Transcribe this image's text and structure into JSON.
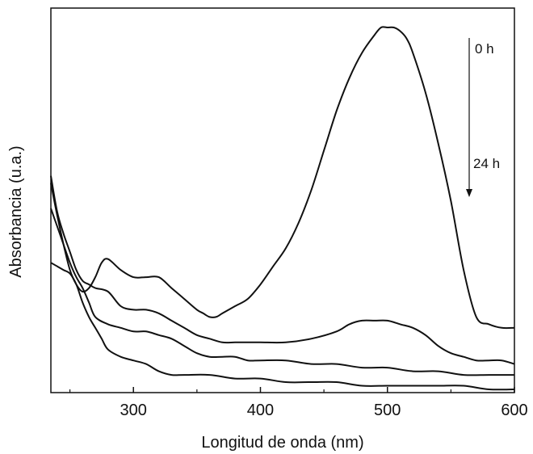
{
  "chart_data": {
    "type": "line",
    "title": "",
    "xlabel": "Longitud de onda (nm)",
    "ylabel": "Absorbancia (u.a.)",
    "xlim": [
      235,
      600
    ],
    "ylim": [
      0,
      1
    ],
    "x_ticks": [
      300,
      400,
      500,
      600
    ],
    "y_ticks_shown": false,
    "grid": false,
    "line_color": "#111111",
    "annotations": {
      "start_label": "0 h",
      "end_label": "24 h",
      "arrow": "down"
    },
    "series": [
      {
        "x": [
          235,
          240,
          245,
          250,
          255,
          260,
          265,
          270,
          275,
          280,
          290,
          300,
          310,
          320,
          330,
          340,
          350,
          355,
          360,
          365,
          370,
          380,
          390,
          400,
          410,
          420,
          430,
          440,
          450,
          460,
          470,
          480,
          490,
          495,
          500,
          505,
          510,
          515,
          520,
          530,
          540,
          550,
          560,
          570,
          580,
          590,
          600
        ],
        "y": [
          0.57,
          0.48,
          0.4,
          0.33,
          0.29,
          0.27,
          0.28,
          0.31,
          0.35,
          0.36,
          0.33,
          0.31,
          0.31,
          0.31,
          0.28,
          0.25,
          0.22,
          0.21,
          0.2,
          0.2,
          0.21,
          0.23,
          0.25,
          0.29,
          0.34,
          0.39,
          0.46,
          0.55,
          0.66,
          0.77,
          0.86,
          0.93,
          0.98,
          1.0,
          1.0,
          1.0,
          0.99,
          0.97,
          0.93,
          0.82,
          0.68,
          0.52,
          0.33,
          0.2,
          0.18,
          0.17,
          0.17
        ]
      },
      {
        "x": [
          235,
          240,
          245,
          250,
          255,
          260,
          265,
          270,
          280,
          290,
          300,
          310,
          320,
          330,
          340,
          350,
          360,
          370,
          380,
          390,
          400,
          420,
          440,
          460,
          470,
          480,
          490,
          500,
          510,
          520,
          530,
          540,
          550,
          560,
          570,
          580,
          590,
          600
        ],
        "y": [
          0.59,
          0.49,
          0.43,
          0.38,
          0.33,
          0.3,
          0.29,
          0.28,
          0.27,
          0.23,
          0.22,
          0.22,
          0.21,
          0.19,
          0.17,
          0.15,
          0.14,
          0.13,
          0.13,
          0.13,
          0.13,
          0.13,
          0.14,
          0.16,
          0.18,
          0.19,
          0.19,
          0.19,
          0.18,
          0.17,
          0.15,
          0.12,
          0.1,
          0.09,
          0.08,
          0.08,
          0.08,
          0.07
        ]
      },
      {
        "x": [
          235,
          240,
          245,
          250,
          255,
          260,
          265,
          270,
          280,
          290,
          300,
          310,
          320,
          330,
          340,
          350,
          360,
          370,
          380,
          390,
          400,
          420,
          440,
          460,
          480,
          500,
          520,
          540,
          560,
          580,
          600
        ],
        "y": [
          0.5,
          0.45,
          0.4,
          0.35,
          0.31,
          0.28,
          0.24,
          0.2,
          0.18,
          0.17,
          0.16,
          0.16,
          0.15,
          0.14,
          0.12,
          0.1,
          0.09,
          0.09,
          0.09,
          0.08,
          0.08,
          0.08,
          0.07,
          0.07,
          0.06,
          0.06,
          0.05,
          0.05,
          0.04,
          0.04,
          0.04
        ]
      },
      {
        "x": [
          235,
          240,
          245,
          250,
          255,
          260,
          265,
          270,
          275,
          280,
          290,
          300,
          310,
          320,
          330,
          340,
          360,
          380,
          400,
          420,
          440,
          460,
          480,
          500,
          520,
          540,
          560,
          580,
          600
        ],
        "y": [
          0.35,
          0.34,
          0.33,
          0.32,
          0.29,
          0.24,
          0.2,
          0.17,
          0.14,
          0.11,
          0.09,
          0.08,
          0.07,
          0.05,
          0.04,
          0.04,
          0.04,
          0.03,
          0.03,
          0.02,
          0.02,
          0.02,
          0.01,
          0.01,
          0.01,
          0.01,
          0.01,
          0.0,
          0.0
        ]
      }
    ]
  }
}
